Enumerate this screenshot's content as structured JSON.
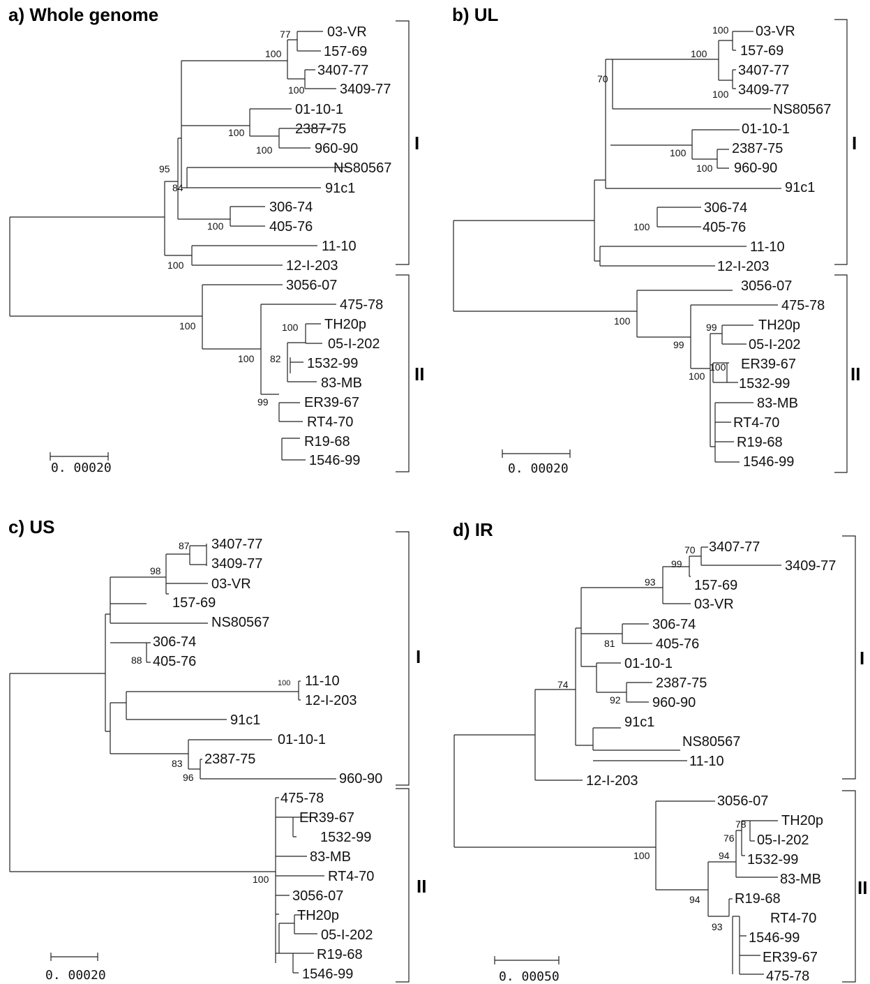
{
  "panels": {
    "a": {
      "title": "a) Whole genome",
      "clades": [
        "I",
        "II"
      ],
      "scale_label": "0. 00020",
      "bootstrap": [
        "77",
        "100",
        "100",
        "100",
        "100",
        "95",
        "84",
        "100",
        "100",
        "100",
        "100",
        "100",
        "82",
        "99"
      ],
      "taxa": [
        "03-VR",
        "157-69",
        "3407-77",
        "3409-77",
        "01-10-1",
        "2387-75",
        "960-90",
        "NS80567",
        "91c1",
        "306-74",
        "405-76",
        "11-10",
        "12-I-203",
        "3056-07",
        "475-78",
        "TH20p",
        "05-I-202",
        "1532-99",
        "83-MB",
        "ER39-67",
        "RT4-70",
        "R19-68",
        "1546-99"
      ]
    },
    "b": {
      "title": "b) UL",
      "clades": [
        "I",
        "II"
      ],
      "scale_label": "0. 00020",
      "bootstrap": [
        "100",
        "100",
        "100",
        "70",
        "100",
        "100",
        "100",
        "100",
        "99",
        "99",
        "100",
        "100"
      ],
      "taxa": [
        "03-VR",
        "157-69",
        "3407-77",
        "3409-77",
        "NS80567",
        "01-10-1",
        "2387-75",
        "960-90",
        "91c1",
        "306-74",
        "405-76",
        "11-10",
        "12-I-203",
        "3056-07",
        "475-78",
        "TH20p",
        "05-I-202",
        "ER39-67",
        "1532-99",
        "83-MB",
        "RT4-70",
        "R19-68",
        "1546-99"
      ]
    },
    "c": {
      "title": "c) US",
      "clades": [
        "I",
        "II"
      ],
      "scale_label": "0. 00020",
      "bootstrap": [
        "87",
        "98",
        "88",
        "100",
        "83",
        "96",
        "100"
      ],
      "taxa": [
        "3407-77",
        "3409-77",
        "03-VR",
        "157-69",
        "NS80567",
        "306-74",
        "405-76",
        "11-10",
        "12-I-203",
        "91c1",
        "01-10-1",
        "2387-75",
        "960-90",
        "475-78",
        "ER39-67",
        "1532-99",
        "83-MB",
        "RT4-70",
        "3056-07",
        "TH20p",
        "05-I-202",
        "R19-68",
        "1546-99"
      ]
    },
    "d": {
      "title": "d) IR",
      "clades": [
        "I",
        "II"
      ],
      "scale_label": "0. 00050",
      "bootstrap": [
        "70",
        "99",
        "93",
        "81",
        "92",
        "74",
        "78",
        "76",
        "94",
        "100",
        "94",
        "93"
      ],
      "taxa": [
        "3407-77",
        "3409-77",
        "157-69",
        "03-VR",
        "306-74",
        "405-76",
        "01-10-1",
        "2387-75",
        "960-90",
        "91c1",
        "NS80567",
        "11-10",
        "12-I-203",
        "3056-07",
        "TH20p",
        "05-I-202",
        "1532-99",
        "83-MB",
        "R19-68",
        "RT4-70",
        "1546-99",
        "ER39-67",
        "475-78"
      ]
    }
  }
}
